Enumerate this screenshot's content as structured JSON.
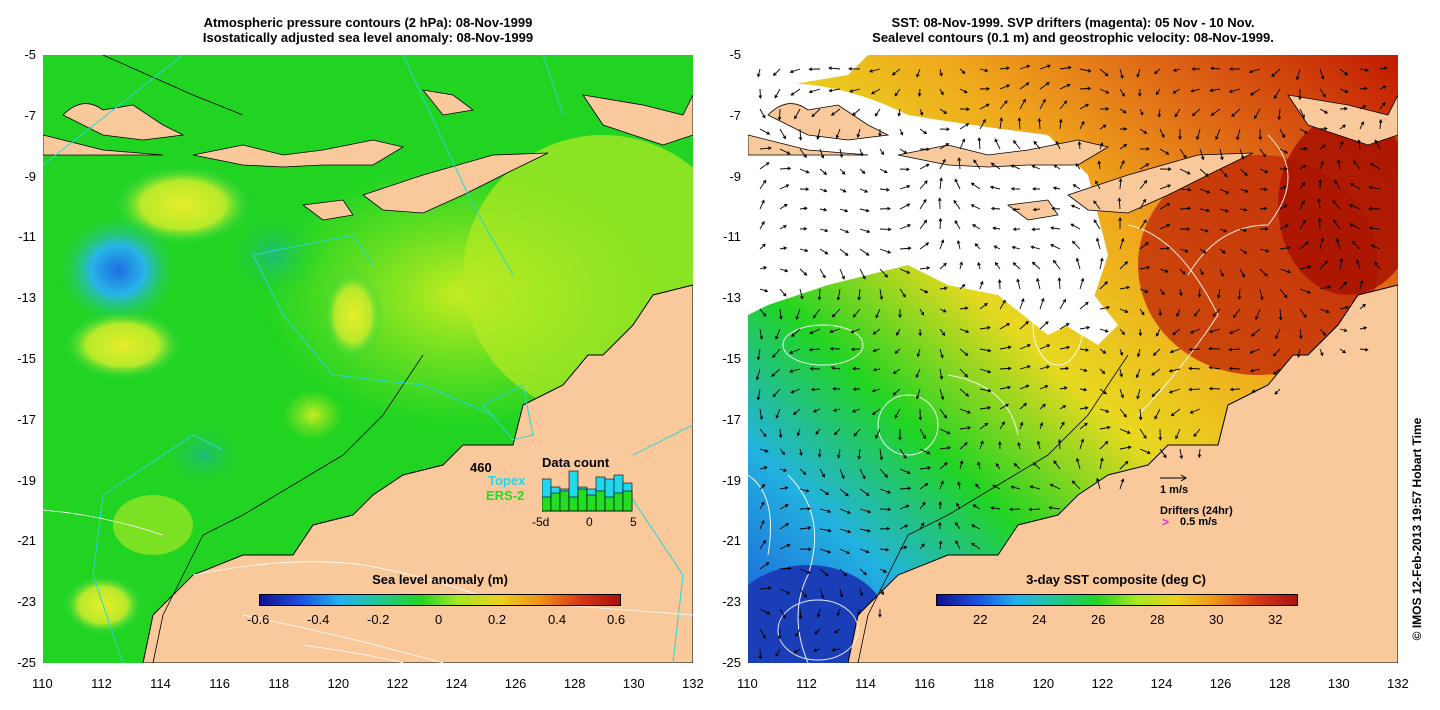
{
  "left_panel": {
    "title_line1": "Atmospheric pressure contours (2 hPa): 08-Nov-1999",
    "title_line2": "Isostatically adjusted sea level anomaly: 08-Nov-1999",
    "x_ticks": [
      "110",
      "112",
      "114",
      "116",
      "118",
      "120",
      "122",
      "124",
      "126",
      "128",
      "130",
      "132"
    ],
    "y_ticks": [
      "-5",
      "-7",
      "-9",
      "-11",
      "-13",
      "-15",
      "-17",
      "-19",
      "-21",
      "-23",
      "-25"
    ],
    "colorbar": {
      "label": "Sea level anomaly (m)",
      "ticks": [
        "-0.6",
        "-0.4",
        "-0.2",
        "0",
        "0.2",
        "0.4",
        "0.6"
      ]
    },
    "data_count": {
      "title": "Data count",
      "total": "460",
      "sat1": "Topex",
      "sat2": "ERS-2",
      "axis": [
        "-5d",
        "0",
        "5"
      ],
      "topex_color": "#22d6ee",
      "ers_color": "#22dd22"
    }
  },
  "right_panel": {
    "title_line1": "SST: 08-Nov-1999. SVP drifters (magenta): 05 Nov - 10 Nov.",
    "title_line2": "Sealevel contours (0.1 m) and geostrophic velocity: 08-Nov-1999.",
    "x_ticks": [
      "110",
      "112",
      "114",
      "116",
      "118",
      "120",
      "122",
      "124",
      "126",
      "128",
      "130",
      "132"
    ],
    "y_ticks": [
      "-5",
      "-7",
      "-9",
      "-11",
      "-13",
      "-15",
      "-17",
      "-19",
      "-21",
      "-23",
      "-25"
    ],
    "colorbar": {
      "label": "3-day SST composite (deg C)",
      "ticks": [
        "22",
        "24",
        "26",
        "28",
        "30",
        "32"
      ]
    },
    "legend": {
      "scale_label": "1 m/s",
      "drifters_label": "Drifters (24hr)",
      "drifter_speed": "0.5 m/s"
    }
  },
  "credit": "© IMOS 12-Feb-2013 19:57 Hobart Time",
  "colors": {
    "land": "#f9c99c",
    "sla_mid": "#1fd21f",
    "sst_hot": "#c01a00"
  }
}
